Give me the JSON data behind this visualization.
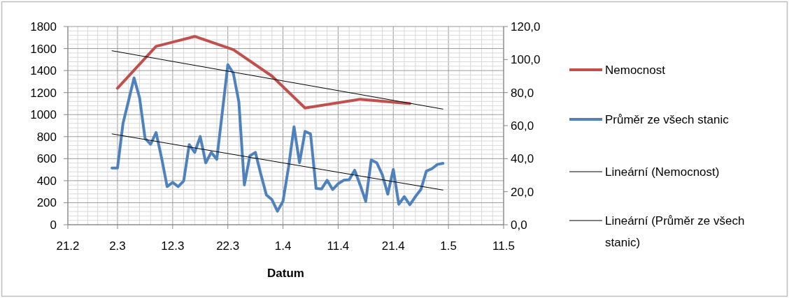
{
  "chart_data": {
    "type": "line",
    "xlabel": "Datum",
    "legend": "right",
    "grid": true,
    "line_style": "solid",
    "marker": "none",
    "xlim": [
      "--02-21",
      "--05-11"
    ],
    "xticks": [
      {
        "value": "--02-21",
        "label": "21.2"
      },
      {
        "value": "--03-02",
        "label": "2.3"
      },
      {
        "value": "--03-12",
        "label": "12.3"
      },
      {
        "value": "--03-22",
        "label": "22.3"
      },
      {
        "value": "--04-01",
        "label": "1.4"
      },
      {
        "value": "--04-11",
        "label": "11.4"
      },
      {
        "value": "--04-21",
        "label": "21.4"
      },
      {
        "value": "--05-01",
        "label": "1.5"
      },
      {
        "value": "--05-11",
        "label": "11.5"
      }
    ],
    "ylim": [
      0,
      1800
    ],
    "yticks": [
      0,
      200,
      400,
      600,
      800,
      1000,
      1200,
      1400,
      1600,
      1800
    ],
    "y2lim": [
      0,
      120
    ],
    "y2ticks": [
      {
        "value": 0,
        "label": "0,0"
      },
      {
        "value": 20,
        "label": "20,0"
      },
      {
        "value": 40,
        "label": "40,0"
      },
      {
        "value": 60,
        "label": "60,0"
      },
      {
        "value": 80,
        "label": "80,0"
      },
      {
        "value": 100,
        "label": "100,0"
      },
      {
        "value": 120,
        "label": "120,0"
      }
    ],
    "series": [
      {
        "name": "Nemocnost",
        "color": "#c0504d",
        "x": [
          "--03-02",
          "--03-09",
          "--03-16",
          "--03-23",
          "--03-30",
          "--04-05",
          "--04-15",
          "--04-24"
        ],
        "values": [
          1240,
          1620,
          1710,
          1590,
          1350,
          1060,
          1140,
          1100
        ]
      },
      {
        "name": "Průměr ze všech stanic",
        "color": "#4f81bd",
        "axis": "y2",
        "x": [
          "--03-01",
          "--03-02",
          "--03-03",
          "--03-04",
          "--03-05",
          "--03-06",
          "--03-07",
          "--03-08",
          "--03-09",
          "--03-10",
          "--03-11",
          "--03-12",
          "--03-13",
          "--03-14",
          "--03-15",
          "--03-16",
          "--03-17",
          "--03-18",
          "--03-19",
          "--03-20",
          "--03-21",
          "--03-22",
          "--03-23",
          "--03-24",
          "--03-25",
          "--03-26",
          "--03-27",
          "--03-28",
          "--03-29",
          "--03-30",
          "--03-31",
          "--04-01",
          "--04-02",
          "--04-03",
          "--04-04",
          "--04-05",
          "--04-06",
          "--04-07",
          "--04-08",
          "--04-09",
          "--04-10",
          "--04-11",
          "--04-12",
          "--04-13",
          "--04-14",
          "--04-15",
          "--04-16",
          "--04-17",
          "--04-18",
          "--04-19",
          "--04-20",
          "--04-21",
          "--04-22",
          "--04-23",
          "--04-24",
          "--04-25",
          "--04-26",
          "--04-27",
          "--04-28",
          "--04-29",
          "--04-30"
        ],
        "values": [
          34.3,
          34.3,
          61.4,
          75,
          88.9,
          76.9,
          52.3,
          48.7,
          55.8,
          40.3,
          23.1,
          25.6,
          23.1,
          26.5,
          48.5,
          43.8,
          53.4,
          37.5,
          43.8,
          39.6,
          68,
          96.9,
          91.7,
          74.4,
          24.1,
          41.7,
          43.8,
          30.4,
          18,
          15.2,
          8.2,
          14.2,
          34.6,
          59.3,
          37.5,
          56.5,
          55,
          22,
          21.7,
          26.9,
          21.3,
          24.8,
          26.9,
          27.3,
          33,
          24,
          14.2,
          39.2,
          37.5,
          30.4,
          18.5,
          33.5,
          12.4,
          17,
          12.1,
          17,
          21.3,
          32.5,
          33.9,
          36.5,
          37.2
        ]
      },
      {
        "name": "Lineární (Nemocnost)",
        "color": "#000000",
        "x": [
          "--03-01",
          "--04-30"
        ],
        "values": [
          1580,
          1050
        ]
      },
      {
        "name": "Lineární (Průměr ze všech stanic)",
        "color": "#000000",
        "axis": "y2",
        "x": [
          "--03-01",
          "--04-30"
        ],
        "values": [
          55,
          21
        ]
      }
    ]
  }
}
